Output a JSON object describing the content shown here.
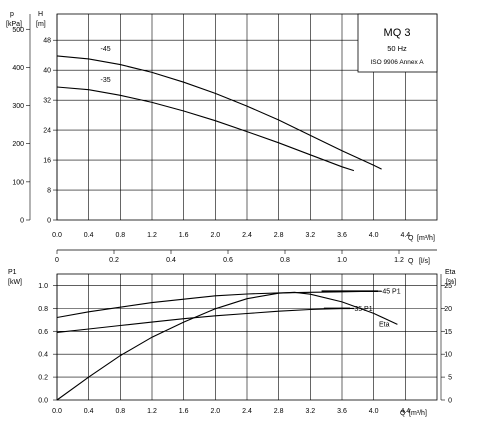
{
  "chart_data": [
    {
      "type": "line",
      "box": {
        "title": "MQ 3",
        "frequency": "50 Hz",
        "standard": "ISO 9906 Annex A"
      },
      "x": {
        "label": "Q",
        "unit": "[m³/h]",
        "ticks": [
          0.0,
          0.4,
          0.8,
          1.2,
          1.6,
          2.0,
          2.4,
          2.8,
          3.2,
          3.6,
          4.0,
          4.4
        ],
        "range": [
          0,
          4.8
        ]
      },
      "y_left": {
        "label": "p",
        "unit": "[kPa]",
        "ticks": [
          0,
          100,
          200,
          300,
          400,
          500
        ],
        "range": [
          0,
          540
        ]
      },
      "y_right": {
        "label": "H",
        "unit": "[m]",
        "ticks": [
          0,
          8,
          16,
          24,
          32,
          40,
          48
        ],
        "range": [
          0,
          55
        ]
      },
      "series": [
        {
          "name": "-45",
          "x": [
            0.0,
            0.4,
            0.8,
            1.2,
            1.6,
            2.0,
            2.4,
            2.8,
            3.2,
            3.6,
            4.0,
            4.1
          ],
          "y": [
            43.8,
            43.0,
            41.5,
            39.4,
            36.8,
            33.8,
            30.4,
            26.7,
            22.6,
            18.5,
            14.6,
            13.6
          ]
        },
        {
          "name": "-35",
          "x": [
            0.0,
            0.4,
            0.8,
            1.2,
            1.6,
            2.0,
            2.4,
            2.8,
            3.2,
            3.6,
            3.75
          ],
          "y": [
            35.5,
            34.8,
            33.3,
            31.4,
            29.1,
            26.5,
            23.6,
            20.6,
            17.4,
            14.2,
            13.2
          ]
        }
      ]
    },
    {
      "type": "line",
      "x_top": {
        "label": "Q",
        "unit": "[l/s]",
        "ticks": [
          0,
          0.2,
          0.4,
          0.6,
          0.8,
          1.0,
          1.2
        ]
      },
      "x": {
        "label": "Q",
        "unit": "[m³/h]",
        "ticks": [
          0.0,
          0.4,
          0.8,
          1.2,
          1.6,
          2.0,
          2.4,
          2.8,
          3.2,
          3.6,
          4.0,
          4.4
        ],
        "range": [
          0,
          4.8
        ]
      },
      "y_left": {
        "label": "P1",
        "unit": "[kW]",
        "ticks": [
          0.0,
          0.2,
          0.4,
          0.6,
          0.8,
          1.0
        ],
        "range": [
          0,
          1.1
        ]
      },
      "y_right": {
        "label": "Eta",
        "unit": "[%]",
        "ticks": [
          0,
          5,
          10,
          15,
          20,
          25
        ],
        "range": [
          0,
          27.5
        ]
      },
      "series": [
        {
          "name": "-45 P1",
          "axis": "left",
          "x": [
            0.0,
            0.4,
            0.8,
            1.2,
            1.6,
            2.0,
            2.4,
            2.8,
            3.2,
            3.6,
            4.0,
            4.1
          ],
          "y": [
            0.72,
            0.77,
            0.81,
            0.85,
            0.88,
            0.91,
            0.925,
            0.935,
            0.94,
            0.945,
            0.95,
            0.95
          ]
        },
        {
          "name": "-35 P1",
          "axis": "left",
          "x": [
            0.0,
            0.4,
            0.8,
            1.2,
            1.6,
            2.0,
            2.4,
            2.8,
            3.2,
            3.6,
            3.75
          ],
          "y": [
            0.59,
            0.62,
            0.65,
            0.68,
            0.71,
            0.735,
            0.755,
            0.775,
            0.79,
            0.8,
            0.8
          ]
        },
        {
          "name": "Eta",
          "axis": "right",
          "x": [
            0.0,
            0.4,
            0.8,
            1.2,
            1.6,
            2.0,
            2.4,
            2.8,
            3.0,
            3.2,
            3.6,
            4.0,
            4.3
          ],
          "y": [
            0.0,
            5.0,
            9.7,
            13.7,
            17.0,
            19.9,
            22.1,
            23.3,
            23.5,
            23.1,
            21.4,
            18.9,
            16.5
          ]
        }
      ]
    }
  ]
}
